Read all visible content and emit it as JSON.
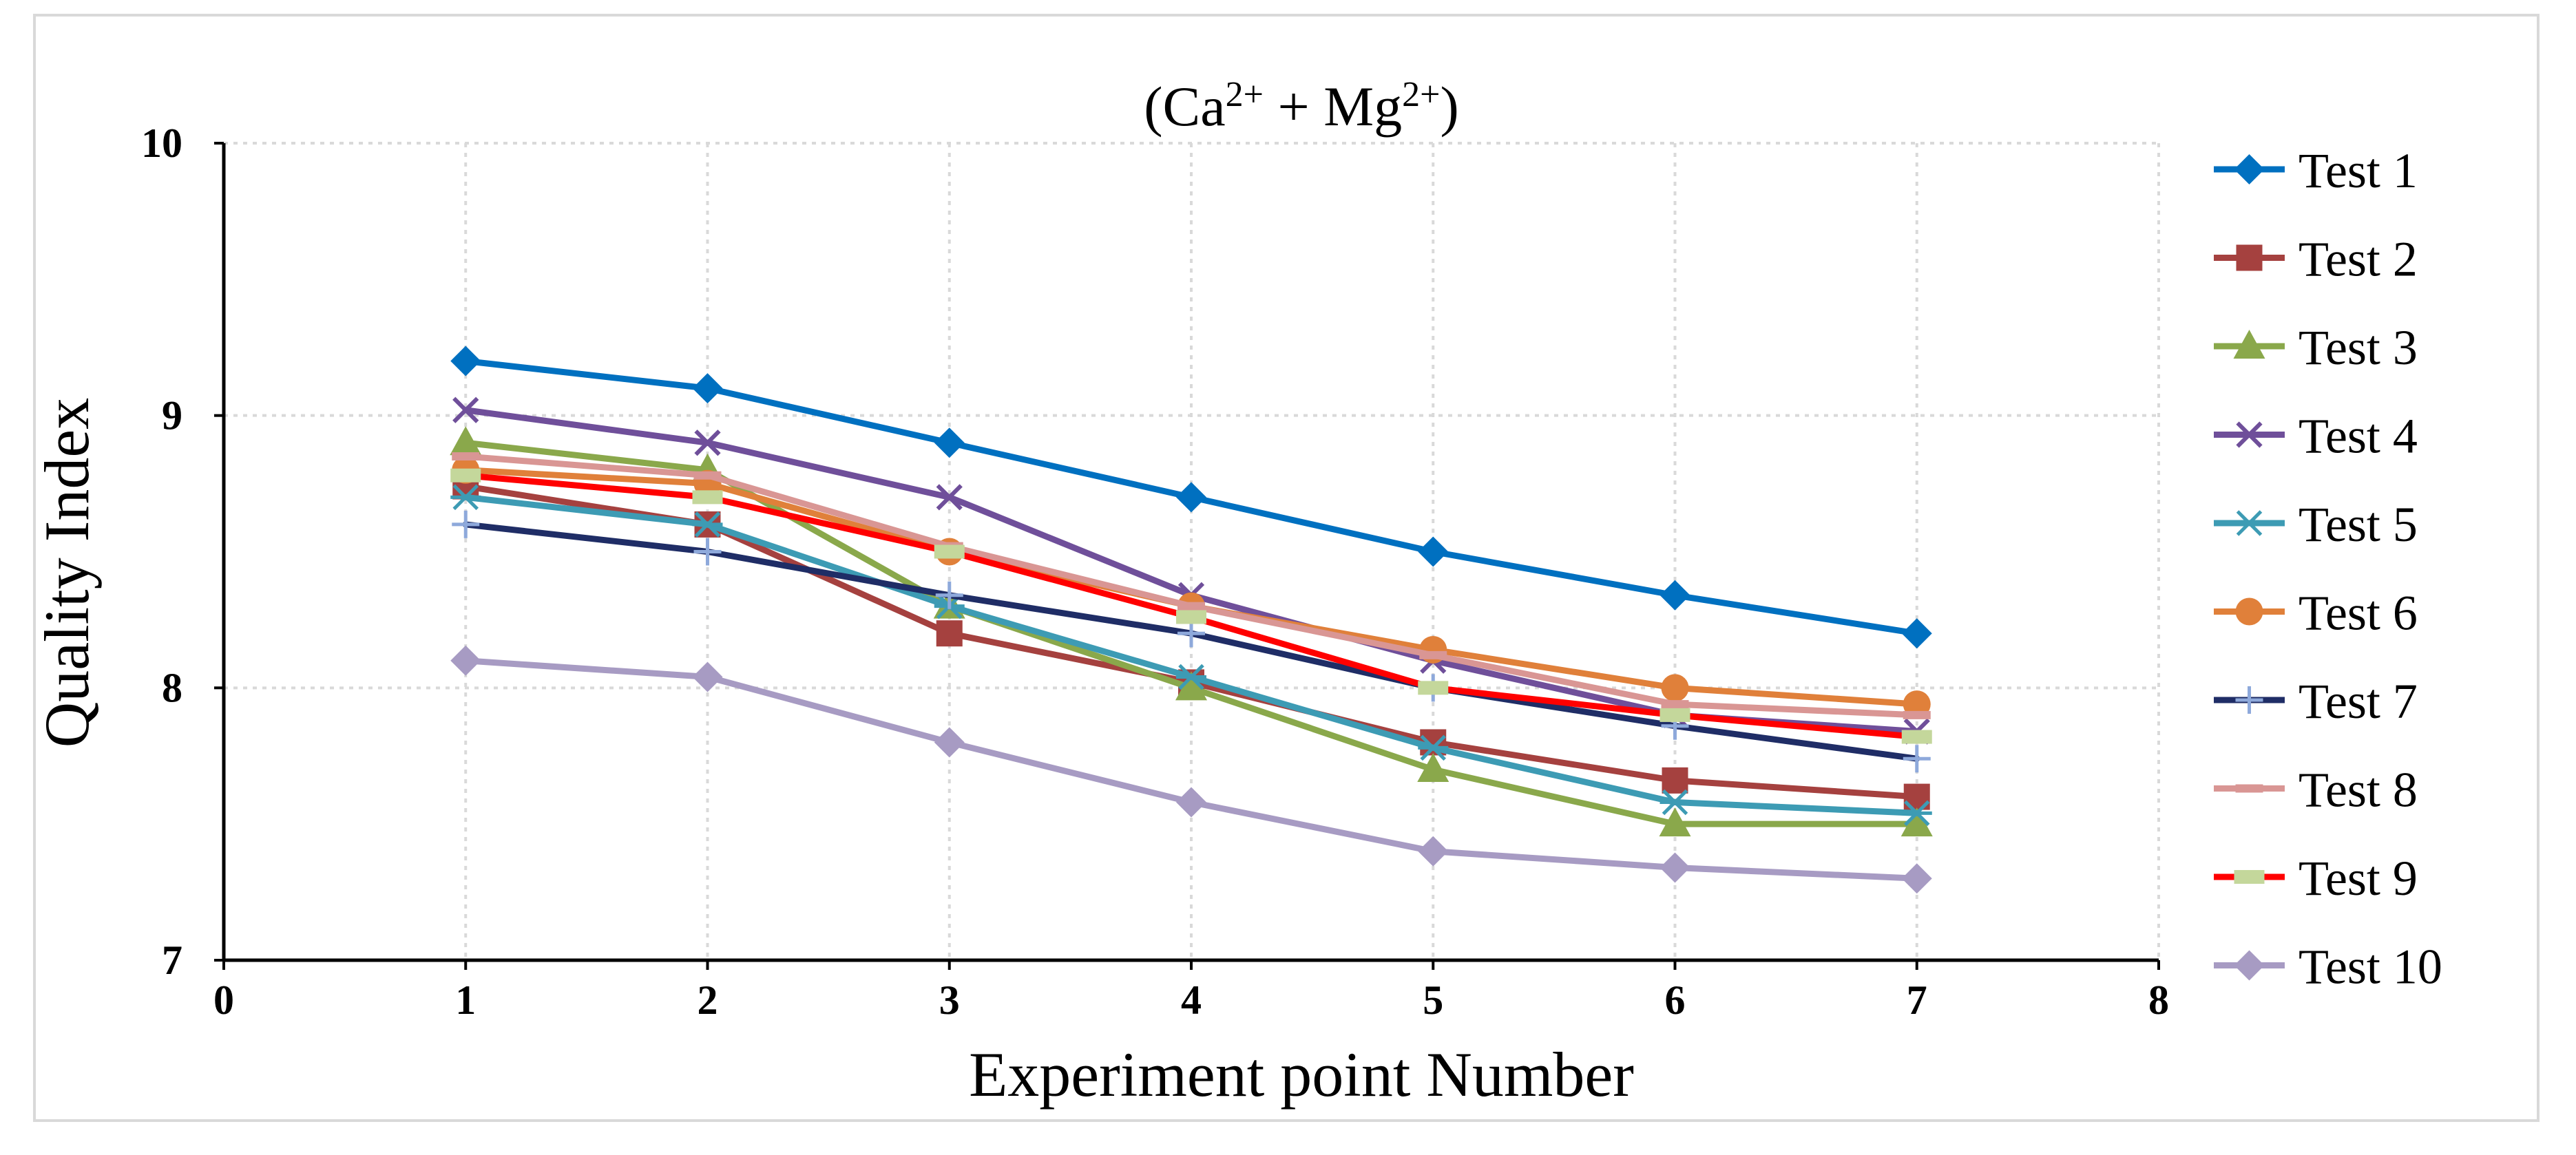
{
  "chart_data": {
    "type": "line",
    "title": {
      "prefix": "(Ca",
      "sup1": "2+",
      "middle": " + Mg",
      "sup2": "2+",
      "suffix": ")"
    },
    "xlabel": "Experiment point Number",
    "ylabel": "Quality Index",
    "xlim": [
      0,
      8
    ],
    "ylim": [
      7,
      10
    ],
    "xticks": [
      0,
      1,
      2,
      3,
      4,
      5,
      6,
      7,
      8
    ],
    "yticks": [
      7,
      8,
      9,
      10
    ],
    "grid": true,
    "legend_position": "right",
    "x": [
      1,
      2,
      3,
      4,
      5,
      6,
      7
    ],
    "series": [
      {
        "name": "Test 1",
        "color": "#0070C0",
        "marker": "diamond",
        "values": [
          9.2,
          9.1,
          8.9,
          8.7,
          8.5,
          8.34,
          8.2
        ]
      },
      {
        "name": "Test 2",
        "color": "#A5413F",
        "marker": "square",
        "values": [
          8.74,
          8.6,
          8.2,
          8.02,
          7.8,
          7.66,
          7.6
        ]
      },
      {
        "name": "Test 3",
        "color": "#8AA84B",
        "marker": "triangle",
        "values": [
          8.9,
          8.8,
          8.3,
          8.0,
          7.7,
          7.5,
          7.5
        ]
      },
      {
        "name": "Test 4",
        "color": "#6F4F9A",
        "marker": "x",
        "values": [
          9.02,
          8.9,
          8.7,
          8.34,
          8.1,
          7.9,
          7.84
        ]
      },
      {
        "name": "Test 5",
        "color": "#3D9BB4",
        "marker": "asterisk",
        "values": [
          8.7,
          8.6,
          8.3,
          8.04,
          7.78,
          7.58,
          7.54
        ]
      },
      {
        "name": "Test 6",
        "color": "#E0803A",
        "marker": "circle",
        "values": [
          8.8,
          8.75,
          8.5,
          8.3,
          8.14,
          8.0,
          7.94
        ]
      },
      {
        "name": "Test 7",
        "color": "#1F2D66",
        "marker": "plus",
        "values": [
          8.6,
          8.5,
          8.34,
          8.2,
          8.0,
          7.86,
          7.74
        ]
      },
      {
        "name": "Test 8",
        "color": "#D99694",
        "marker": "dash",
        "values": [
          8.85,
          8.78,
          8.52,
          8.3,
          8.12,
          7.94,
          7.9
        ]
      },
      {
        "name": "Test 9",
        "color": "#FF0000",
        "marker": "bar",
        "values": [
          8.78,
          8.7,
          8.5,
          8.26,
          8.0,
          7.9,
          7.82
        ]
      },
      {
        "name": "Test 10",
        "color": "#A79BC3",
        "marker": "diamond",
        "values": [
          8.1,
          8.04,
          7.8,
          7.58,
          7.4,
          7.34,
          7.3
        ]
      }
    ]
  }
}
